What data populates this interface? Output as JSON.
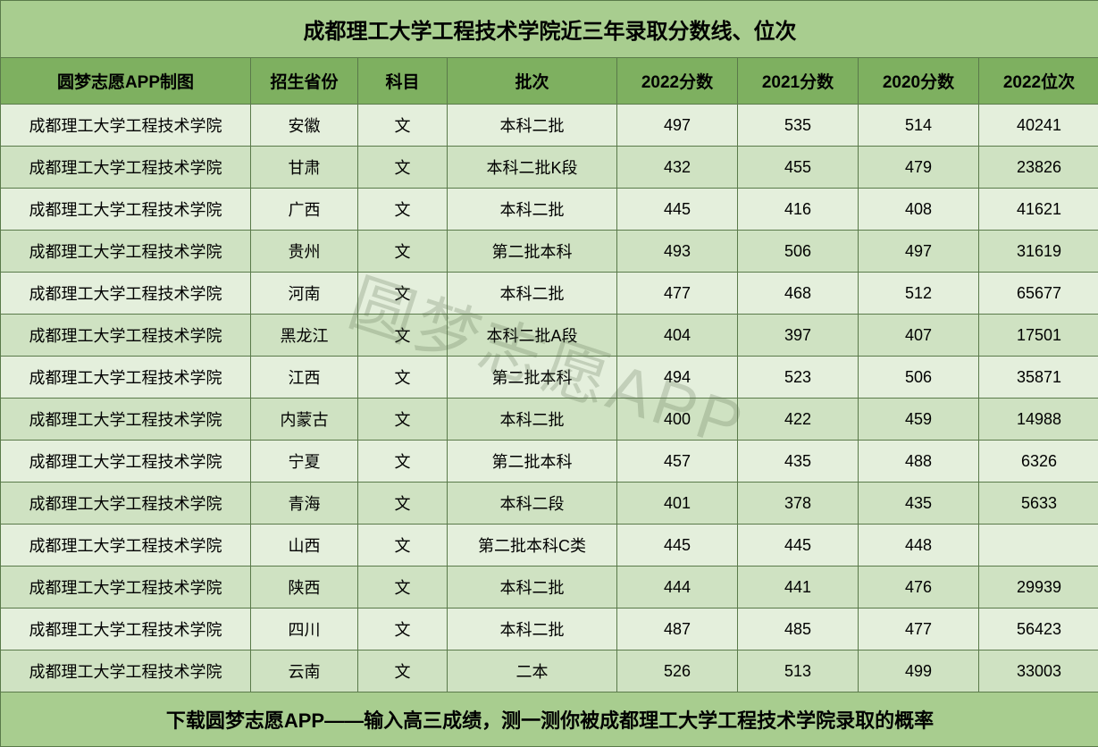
{
  "title": "成都理工大学工程技术学院近三年录取分数线、位次",
  "footer": "下载圆梦志愿APP——输入高三成绩，测一测你被成都理工大学工程技术学院录取的概率",
  "watermark": "圆梦志愿APP",
  "headers": {
    "school": "圆梦志愿APP制图",
    "province": "招生省份",
    "subject": "科目",
    "batch": "批次",
    "score2022": "2022分数",
    "score2021": "2021分数",
    "score2020": "2020分数",
    "rank2022": "2022位次"
  },
  "colors": {
    "title_bg": "#a8cd8f",
    "header_bg": "#7eb060",
    "row_odd_bg": "#e4efdc",
    "row_even_bg": "#cfe2c2",
    "border": "#5a7a4a",
    "text": "#000000",
    "watermark": "rgba(90,110,80,0.25)"
  },
  "rows": [
    {
      "school": "成都理工大学工程技术学院",
      "province": "安徽",
      "subject": "文",
      "batch": "本科二批",
      "s22": "497",
      "s21": "535",
      "s20": "514",
      "rank": "40241"
    },
    {
      "school": "成都理工大学工程技术学院",
      "province": "甘肃",
      "subject": "文",
      "batch": "本科二批K段",
      "s22": "432",
      "s21": "455",
      "s20": "479",
      "rank": "23826"
    },
    {
      "school": "成都理工大学工程技术学院",
      "province": "广西",
      "subject": "文",
      "batch": "本科二批",
      "s22": "445",
      "s21": "416",
      "s20": "408",
      "rank": "41621"
    },
    {
      "school": "成都理工大学工程技术学院",
      "province": "贵州",
      "subject": "文",
      "batch": "第二批本科",
      "s22": "493",
      "s21": "506",
      "s20": "497",
      "rank": "31619"
    },
    {
      "school": "成都理工大学工程技术学院",
      "province": "河南",
      "subject": "文",
      "batch": "本科二批",
      "s22": "477",
      "s21": "468",
      "s20": "512",
      "rank": "65677"
    },
    {
      "school": "成都理工大学工程技术学院",
      "province": "黑龙江",
      "subject": "文",
      "batch": "本科二批A段",
      "s22": "404",
      "s21": "397",
      "s20": "407",
      "rank": "17501"
    },
    {
      "school": "成都理工大学工程技术学院",
      "province": "江西",
      "subject": "文",
      "batch": "第二批本科",
      "s22": "494",
      "s21": "523",
      "s20": "506",
      "rank": "35871"
    },
    {
      "school": "成都理工大学工程技术学院",
      "province": "内蒙古",
      "subject": "文",
      "batch": "本科二批",
      "s22": "400",
      "s21": "422",
      "s20": "459",
      "rank": "14988"
    },
    {
      "school": "成都理工大学工程技术学院",
      "province": "宁夏",
      "subject": "文",
      "batch": "第二批本科",
      "s22": "457",
      "s21": "435",
      "s20": "488",
      "rank": "6326"
    },
    {
      "school": "成都理工大学工程技术学院",
      "province": "青海",
      "subject": "文",
      "batch": "本科二段",
      "s22": "401",
      "s21": "378",
      "s20": "435",
      "rank": "5633"
    },
    {
      "school": "成都理工大学工程技术学院",
      "province": "山西",
      "subject": "文",
      "batch": "第二批本科C类",
      "s22": "445",
      "s21": "445",
      "s20": "448",
      "rank": ""
    },
    {
      "school": "成都理工大学工程技术学院",
      "province": "陕西",
      "subject": "文",
      "batch": "本科二批",
      "s22": "444",
      "s21": "441",
      "s20": "476",
      "rank": "29939"
    },
    {
      "school": "成都理工大学工程技术学院",
      "province": "四川",
      "subject": "文",
      "batch": "本科二批",
      "s22": "487",
      "s21": "485",
      "s20": "477",
      "rank": "56423"
    },
    {
      "school": "成都理工大学工程技术学院",
      "province": "云南",
      "subject": "文",
      "batch": "二本",
      "s22": "526",
      "s21": "513",
      "s20": "499",
      "rank": "33003"
    }
  ]
}
